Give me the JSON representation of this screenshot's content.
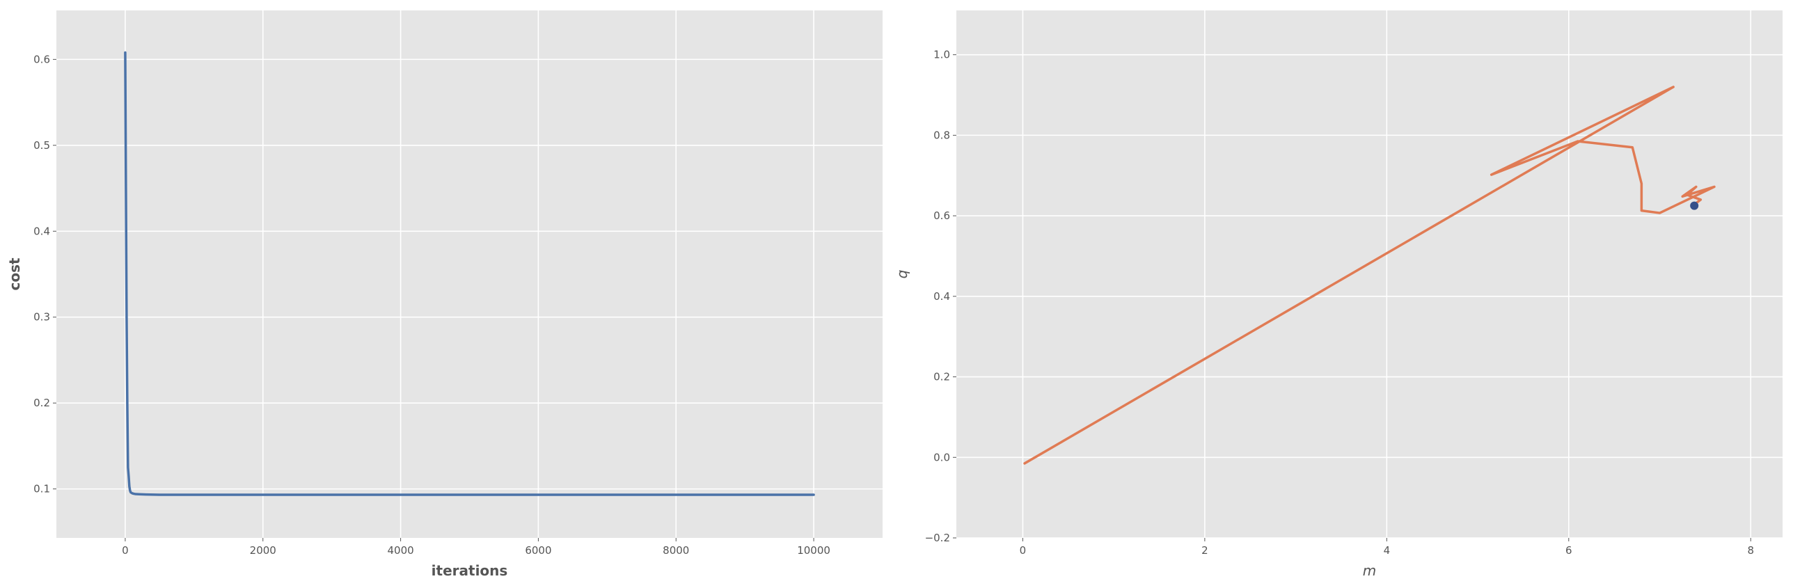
{
  "chart_data": [
    {
      "type": "line",
      "title": "",
      "xlabel": "iterations",
      "ylabel": "cost",
      "xlim": [
        -1000,
        11000
      ],
      "ylim": [
        0.043,
        0.657
      ],
      "xticks": [
        0,
        2000,
        4000,
        6000,
        8000,
        10000
      ],
      "yticks": [
        0.1,
        0.2,
        0.3,
        0.4,
        0.5,
        0.6
      ],
      "xtick_labels": [
        "0",
        "2000",
        "4000",
        "6000",
        "8000",
        "10000"
      ],
      "ytick_labels": [
        "0.1",
        "0.2",
        "0.3",
        "0.4",
        "0.5",
        "0.6"
      ],
      "grid": true,
      "colors": {
        "background": "#e5e5e5",
        "grid": "#ffffff",
        "line": "#4a72a8"
      },
      "series": [
        {
          "x": [
            0,
            10,
            20,
            30,
            40,
            50,
            60,
            70,
            80,
            100,
            120,
            150,
            200,
            300,
            500,
            1000,
            2000,
            4000,
            6000,
            8000,
            10000
          ],
          "y": [
            0.608,
            0.45,
            0.3,
            0.2,
            0.125,
            0.115,
            0.103,
            0.098,
            0.096,
            0.095,
            0.0945,
            0.094,
            0.0938,
            0.0935,
            0.0932,
            0.0932,
            0.0932,
            0.0932,
            0.0932,
            0.0932,
            0.0932
          ]
        }
      ]
    },
    {
      "type": "line",
      "title": "",
      "xlabel": "m",
      "ylabel": "q",
      "xlim": [
        -0.73,
        8.35
      ],
      "ylim": [
        -0.2,
        1.11
      ],
      "xticks": [
        0,
        2,
        4,
        6,
        8
      ],
      "yticks": [
        -0.2,
        0.0,
        0.2,
        0.4,
        0.6,
        0.8,
        1.0
      ],
      "xtick_labels": [
        "0",
        "2",
        "4",
        "6",
        "8"
      ],
      "ytick_labels": [
        "−0.2",
        "0.0",
        "0.2",
        "0.4",
        "0.6",
        "0.8",
        "1.0"
      ],
      "grid": true,
      "colors": {
        "background": "#e5e5e5",
        "grid": "#ffffff",
        "line": "#e07b54",
        "marker": "#34508a"
      },
      "series": [
        {
          "x": [
            0.02,
            7.15,
            5.15,
            6.1,
            6.7,
            6.8,
            6.8,
            7.0,
            7.6,
            7.25,
            7.4,
            7.3,
            7.45,
            7.38
          ],
          "y": [
            -0.015,
            0.92,
            0.702,
            0.785,
            0.77,
            0.68,
            0.613,
            0.607,
            0.672,
            0.648,
            0.672,
            0.652,
            0.64,
            0.628
          ]
        }
      ],
      "marker_point": {
        "x": 7.38,
        "y": 0.625
      }
    }
  ]
}
